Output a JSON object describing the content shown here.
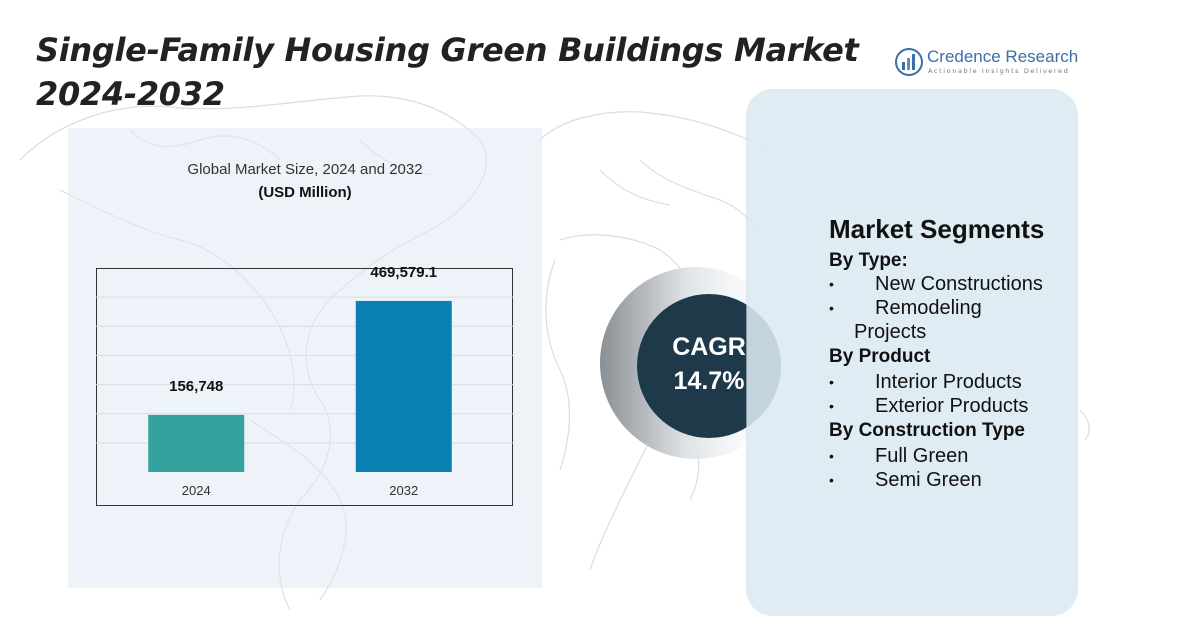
{
  "title": "Single-Family Housing Green Buildings Market 2024-2032",
  "logo": {
    "name": "Credence Research",
    "tagline": "Actionable Insights Delivered"
  },
  "chart_data": {
    "type": "bar",
    "title": "Global Market Size, 2024 and 2032",
    "subtitle": "(USD Million)",
    "categories": [
      "2024",
      "2032"
    ],
    "values": [
      156748,
      469579.1
    ],
    "value_labels": [
      "156,748",
      "469,579.1"
    ],
    "colors": [
      "#36a29e",
      "#0a7fb2"
    ],
    "ylim": [
      0,
      560000
    ],
    "grid": true
  },
  "cagr": {
    "label": "CAGR",
    "value": "14.7%"
  },
  "segments": {
    "title": "Market Segments",
    "by_type": {
      "heading": "By Type:",
      "items": [
        "New Constructions",
        "Remodeling",
        "Projects"
      ]
    },
    "by_product": {
      "heading": "By Product",
      "items": [
        "Interior Products",
        "Exterior Products"
      ]
    },
    "by_construction": {
      "heading": "By Construction Type",
      "items": [
        "Full Green",
        "Semi Green"
      ]
    },
    "bullet": "•"
  },
  "colors": {
    "cagr_circle": "#1e3a4a",
    "card_background": "#dce9f2",
    "logo_blue": "#3b6fa8"
  }
}
